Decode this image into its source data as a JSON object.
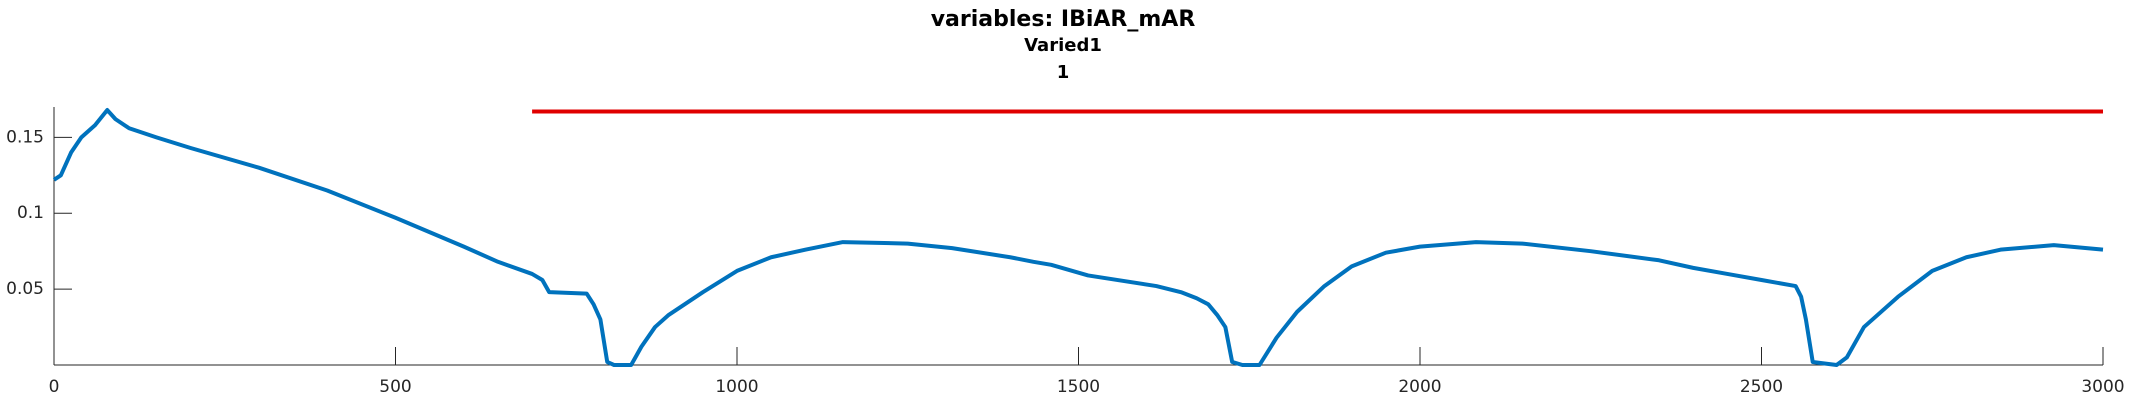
{
  "chart_data": {
    "type": "line",
    "title": [
      "variables: IBiAR_mAR",
      "Varied1",
      "1"
    ],
    "xlim": [
      0,
      3000
    ],
    "xticks": [
      0,
      500,
      1000,
      1500,
      2000,
      2500,
      3000
    ],
    "ylim": [
      0,
      0.17
    ],
    "yticks": [
      0.05,
      0.1,
      0.15
    ],
    "series": [
      {
        "color": "#0072bd",
        "x": [
          0,
          10,
          25,
          40,
          60,
          78,
          90,
          110,
          150,
          200,
          300,
          400,
          500,
          600,
          650,
          700,
          715,
          725,
          780,
          790,
          800,
          810,
          820,
          845,
          860,
          880,
          900,
          950,
          1000,
          1050,
          1100,
          1155,
          1250,
          1315,
          1400,
          1434,
          1460,
          1514,
          1614,
          1650,
          1673,
          1690,
          1703,
          1715,
          1725,
          1740,
          1765,
          1790,
          1820,
          1860,
          1900,
          1950,
          2000,
          2082,
          2150,
          2250,
          2350,
          2400,
          2450,
          2500,
          2550,
          2558,
          2565,
          2575,
          2610,
          2625,
          2650,
          2700,
          2750,
          2800,
          2850,
          2928,
          3000
        ],
        "values": [
          0.122,
          0.125,
          0.14,
          0.15,
          0.158,
          0.168,
          0.162,
          0.156,
          0.15,
          0.143,
          0.13,
          0.115,
          0.097,
          0.078,
          0.068,
          0.06,
          0.056,
          0.048,
          0.047,
          0.04,
          0.03,
          0.002,
          0.0,
          0.0,
          0.012,
          0.025,
          0.033,
          0.048,
          0.062,
          0.071,
          0.076,
          0.081,
          0.08,
          0.077,
          0.071,
          0.068,
          0.066,
          0.059,
          0.052,
          0.048,
          0.044,
          0.04,
          0.033,
          0.025,
          0.002,
          0.0,
          0.0,
          0.018,
          0.035,
          0.052,
          0.065,
          0.074,
          0.078,
          0.081,
          0.08,
          0.075,
          0.069,
          0.064,
          0.06,
          0.056,
          0.052,
          0.045,
          0.03,
          0.002,
          0.0,
          0.005,
          0.025,
          0.045,
          0.062,
          0.071,
          0.076,
          0.079,
          0.076
        ]
      },
      {
        "color": "#e00000",
        "x": [
          700,
          3000
        ],
        "values": [
          0.167,
          0.167
        ]
      }
    ]
  }
}
